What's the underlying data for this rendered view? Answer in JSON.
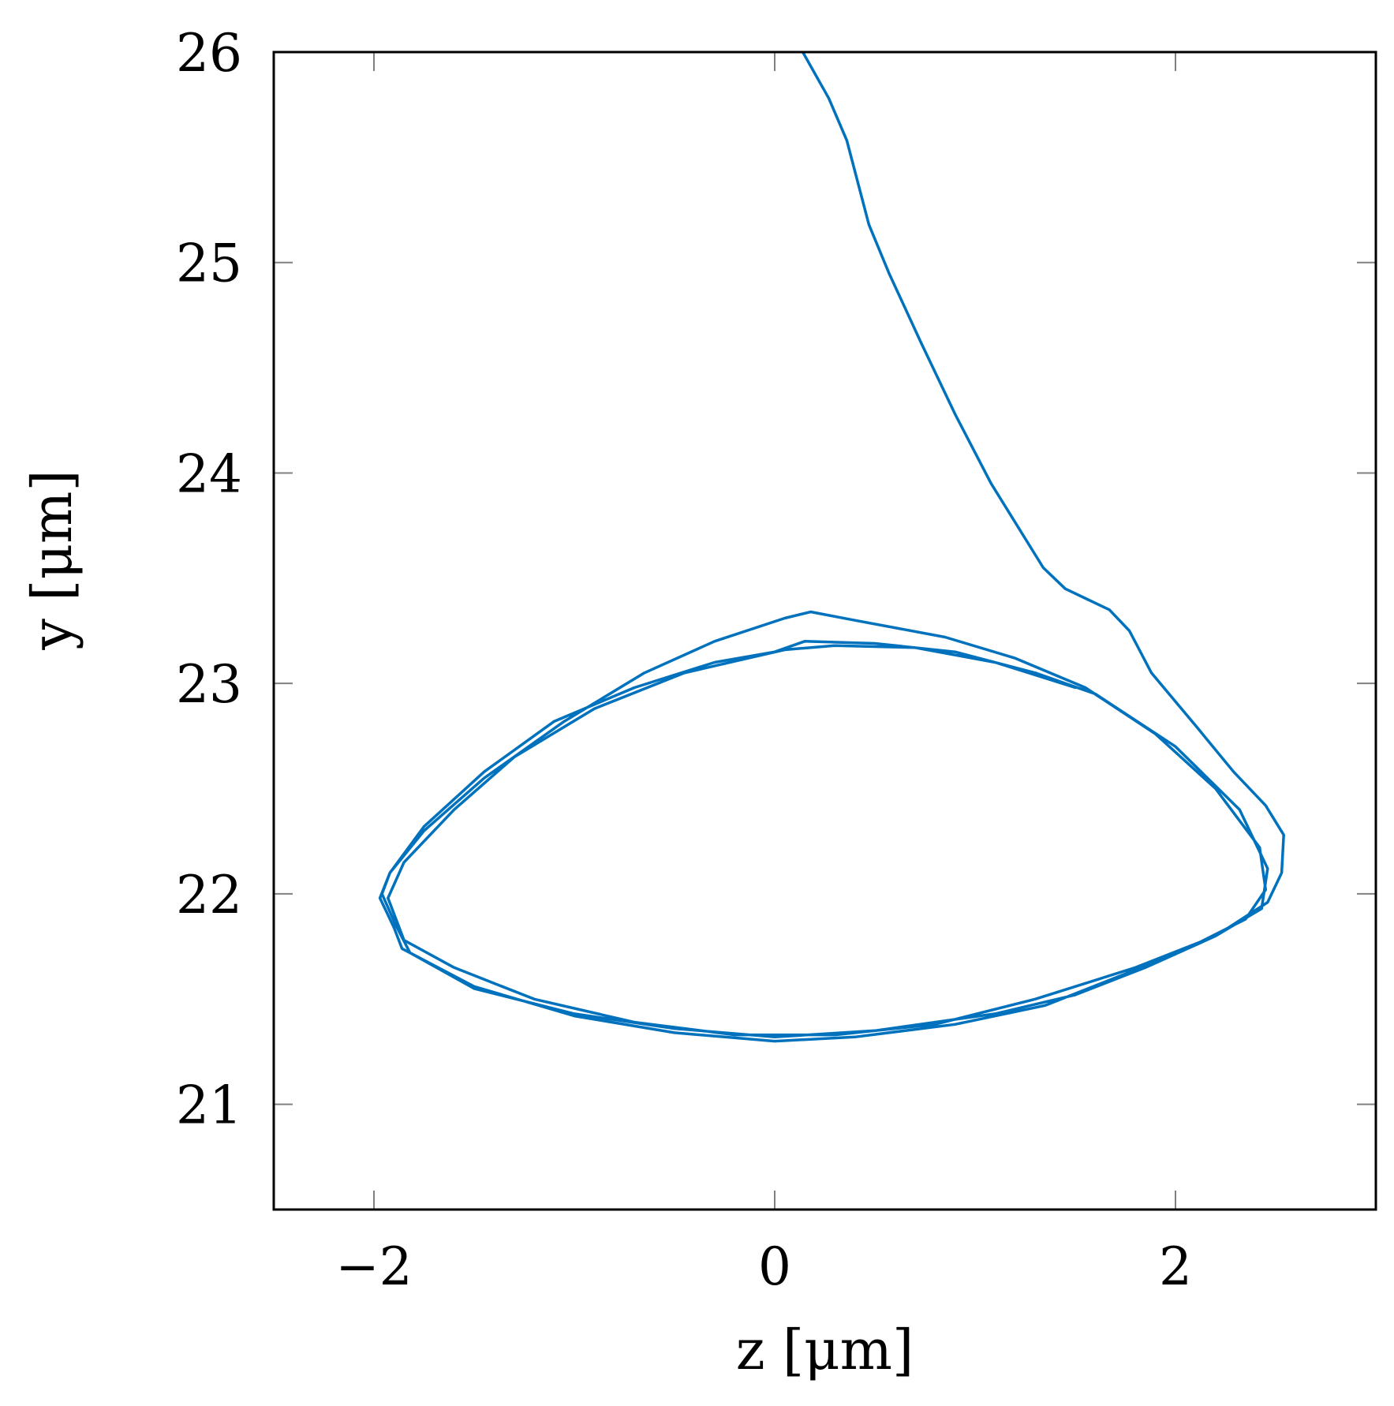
{
  "chart_data": {
    "type": "line",
    "xlabel": "z [μm]",
    "ylabel": "y [μm]",
    "xlim": [
      -2.5,
      3.0
    ],
    "ylim": [
      20.5,
      26.0
    ],
    "xticks": [
      -2,
      0,
      2
    ],
    "xtick_labels": [
      "−2",
      "0",
      "2"
    ],
    "yticks": [
      21,
      22,
      23,
      24,
      25,
      26
    ],
    "ytick_labels": [
      "21",
      "22",
      "23",
      "24",
      "25",
      "26"
    ],
    "grid": false,
    "legend": "none",
    "series": [
      {
        "color": "#0072bd",
        "points": [
          [
            0.14,
            26.0
          ],
          [
            0.27,
            25.78
          ],
          [
            0.36,
            25.58
          ],
          [
            0.47,
            25.18
          ],
          [
            0.57,
            24.95
          ],
          [
            0.73,
            24.62
          ],
          [
            0.9,
            24.28
          ],
          [
            1.08,
            23.95
          ],
          [
            1.34,
            23.55
          ],
          [
            1.45,
            23.45
          ],
          [
            1.56,
            23.4
          ],
          [
            1.67,
            23.35
          ],
          [
            1.77,
            23.25
          ],
          [
            1.88,
            23.05
          ],
          [
            2.1,
            22.8
          ],
          [
            2.29,
            22.58
          ],
          [
            2.45,
            22.42
          ],
          [
            2.54,
            22.28
          ],
          [
            2.53,
            22.1
          ],
          [
            2.46,
            21.96
          ],
          [
            2.2,
            21.8
          ],
          [
            1.85,
            21.65
          ],
          [
            1.5,
            21.52
          ],
          [
            1.1,
            21.43
          ],
          [
            0.5,
            21.35
          ],
          [
            0.0,
            21.32
          ],
          [
            -0.5,
            21.36
          ],
          [
            -1.0,
            21.43
          ],
          [
            -1.5,
            21.55
          ],
          [
            -1.82,
            21.72
          ],
          [
            -1.89,
            21.85
          ],
          [
            -1.96,
            22.0
          ],
          [
            -1.92,
            22.1
          ],
          [
            -1.75,
            22.3
          ],
          [
            -1.45,
            22.55
          ],
          [
            -1.05,
            22.82
          ],
          [
            -0.65,
            23.05
          ],
          [
            -0.3,
            23.2
          ],
          [
            0.05,
            23.31
          ],
          [
            0.18,
            23.34
          ],
          [
            0.4,
            23.3
          ],
          [
            0.85,
            23.22
          ],
          [
            1.2,
            23.12
          ],
          [
            1.55,
            22.98
          ],
          [
            1.9,
            22.76
          ],
          [
            2.2,
            22.5
          ],
          [
            2.42,
            22.22
          ],
          [
            2.45,
            22.02
          ],
          [
            2.35,
            21.88
          ],
          [
            2.1,
            21.76
          ],
          [
            1.75,
            21.62
          ],
          [
            1.35,
            21.47
          ],
          [
            0.9,
            21.38
          ],
          [
            0.4,
            21.32
          ],
          [
            0.0,
            21.3
          ],
          [
            -0.5,
            21.34
          ],
          [
            -1.0,
            21.42
          ],
          [
            -1.5,
            21.56
          ],
          [
            -1.86,
            21.74
          ],
          [
            -1.9,
            21.84
          ],
          [
            -1.97,
            21.98
          ],
          [
            -1.92,
            22.1
          ],
          [
            -1.75,
            22.32
          ],
          [
            -1.45,
            22.58
          ],
          [
            -1.1,
            22.82
          ],
          [
            -0.7,
            22.98
          ],
          [
            -0.3,
            23.1
          ],
          [
            0.0,
            23.15
          ],
          [
            0.15,
            23.2
          ],
          [
            0.5,
            23.19
          ],
          [
            0.9,
            23.15
          ],
          [
            1.3,
            23.05
          ],
          [
            1.6,
            22.95
          ],
          [
            2.0,
            22.7
          ],
          [
            2.32,
            22.4
          ],
          [
            2.46,
            22.12
          ],
          [
            2.43,
            21.93
          ],
          [
            2.2,
            21.8
          ],
          [
            1.8,
            21.65
          ],
          [
            1.3,
            21.5
          ],
          [
            0.8,
            21.38
          ],
          [
            0.3,
            21.33
          ],
          [
            -0.2,
            21.33
          ],
          [
            -0.7,
            21.39
          ],
          [
            -1.2,
            21.5
          ],
          [
            -1.6,
            21.65
          ],
          [
            -1.85,
            21.78
          ],
          [
            -1.93,
            21.98
          ],
          [
            -1.85,
            22.15
          ],
          [
            -1.6,
            22.4
          ],
          [
            -1.3,
            22.65
          ],
          [
            -0.9,
            22.88
          ],
          [
            -0.45,
            23.05
          ],
          [
            0.05,
            23.16
          ],
          [
            0.3,
            23.18
          ],
          [
            0.7,
            23.17
          ],
          [
            1.1,
            23.1
          ],
          [
            1.5,
            22.98
          ]
        ]
      }
    ]
  }
}
